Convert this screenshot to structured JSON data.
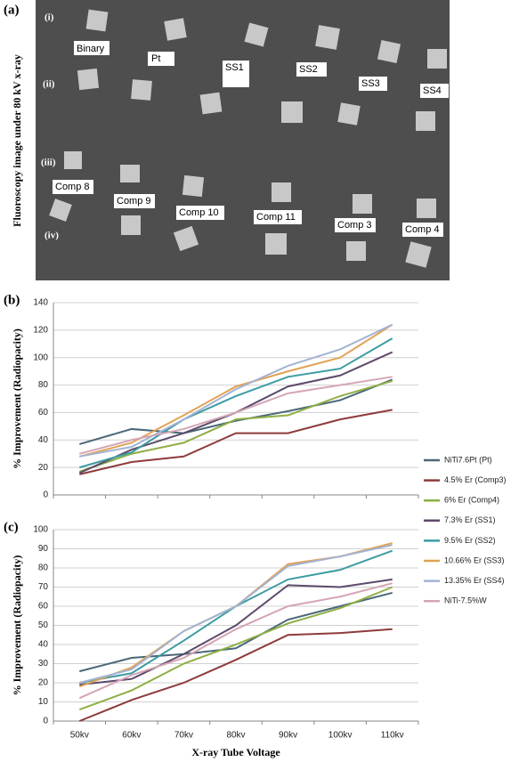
{
  "panel_a": {
    "label": "(a)",
    "title": "Fluoroscopy image under 80 kV x-ray",
    "rows": [
      "(i)",
      "(ii)",
      "(iii)",
      "(iv)"
    ],
    "samples": [
      "Binary",
      "Pt",
      "SS1",
      "SS2",
      "SS3",
      "SS4",
      "Comp 8",
      "Comp 9",
      "Comp 10",
      "Comp 11",
      "Comp 3",
      "Comp 4"
    ]
  },
  "chart_data": [
    {
      "type": "line",
      "panel": "(b)",
      "y_label": "% Improvement (Radiopacity)",
      "ylim": [
        0,
        140
      ],
      "yticks": [
        0,
        20,
        40,
        60,
        80,
        100,
        120,
        140
      ],
      "grid": true,
      "series": [
        {
          "name": "NiTi7.6Pt  (Pt)",
          "color": "#4a6878",
          "values": [
            37,
            48,
            45,
            54,
            61,
            69,
            84
          ]
        },
        {
          "name": "4.5% Er  (Comp3)",
          "color": "#8e3b3b",
          "values": [
            15,
            24,
            28,
            45,
            45,
            55,
            62
          ]
        },
        {
          "name": "6% Er  (Comp4)",
          "color": "#8fae44",
          "values": [
            17,
            30,
            38,
            55,
            58,
            72,
            83
          ]
        },
        {
          "name": "7.3% Er  (SS1)",
          "color": "#5d4a6b",
          "values": [
            16,
            33,
            45,
            60,
            79,
            87,
            104
          ]
        },
        {
          "name": "9.5% Er  (SS2)",
          "color": "#3c9ca3",
          "values": [
            20,
            31,
            55,
            72,
            86,
            92,
            114
          ]
        },
        {
          "name": "10.66% Er  (SS3)",
          "color": "#e2a254",
          "values": [
            28,
            38,
            58,
            79,
            90,
            100,
            124
          ]
        },
        {
          "name": "13.35% Er  (SS4)",
          "color": "#a3b3d3",
          "values": [
            28,
            35,
            55,
            77,
            94,
            106,
            124
          ]
        },
        {
          "name": "NiTi-7.5%W",
          "color": "#d4a5b5",
          "values": [
            30,
            40,
            48,
            60,
            74,
            80,
            86
          ]
        }
      ]
    },
    {
      "type": "line",
      "panel": "(c)",
      "y_label": "% Improvement (Radiopacity)",
      "x_label": "X-ray Tube Voltage",
      "categories": [
        "50kv",
        "60kv",
        "70kv",
        "80kv",
        "90kv",
        "100kv",
        "110kv"
      ],
      "ylim": [
        0,
        100
      ],
      "yticks": [
        0,
        10,
        20,
        30,
        40,
        50,
        60,
        70,
        80,
        90,
        100
      ],
      "grid": true,
      "series": [
        {
          "color": "#4a6878",
          "values": [
            26,
            33,
            35,
            38,
            53,
            60,
            67
          ]
        },
        {
          "color": "#8e3b3b",
          "values": [
            0,
            11,
            20,
            32,
            45,
            46,
            48
          ]
        },
        {
          "color": "#8fae44",
          "values": [
            6,
            16,
            30,
            40,
            51,
            59,
            70
          ]
        },
        {
          "color": "#5d4a6b",
          "values": [
            19,
            22,
            35,
            50,
            71,
            70,
            74
          ]
        },
        {
          "color": "#3c9ca3",
          "values": [
            20,
            25,
            42,
            60,
            74,
            79,
            89
          ]
        },
        {
          "color": "#e2a254",
          "values": [
            18,
            28,
            47,
            60,
            82,
            86,
            93
          ]
        },
        {
          "color": "#a3b3d3",
          "values": [
            20,
            27,
            47,
            60,
            81,
            86,
            92
          ]
        },
        {
          "color": "#d4a5b5",
          "values": [
            12,
            24,
            33,
            48,
            60,
            65,
            72
          ]
        }
      ]
    }
  ]
}
